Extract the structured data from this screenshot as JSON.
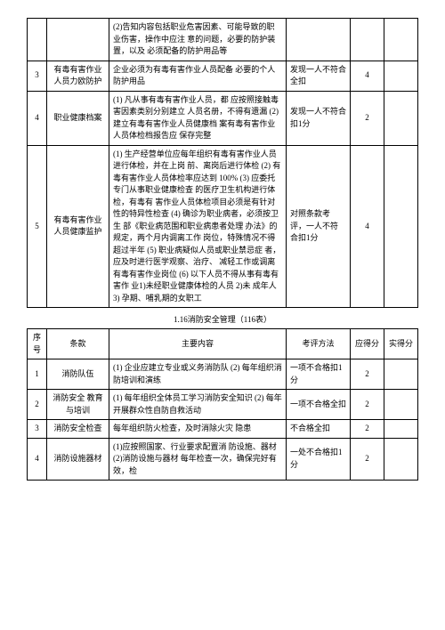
{
  "table1": {
    "rows": [
      {
        "idx": "",
        "item": "",
        "content": "(2)告知内容包括职业危害因素、可能导致的职业伤害，操作中应注 意的问题，必要的防护装置，以及 必须配备的防护用品等",
        "method": "",
        "score1": "",
        "score2": ""
      },
      {
        "idx": "3",
        "item": "有毒有害作业人员力欧防护",
        "content": "企业必须为有毒有害作业人员配备 必要的个人防护用品",
        "method": "发现一人不符合全扣",
        "score1": "4",
        "score2": ""
      },
      {
        "idx": "4",
        "item": "职业健康档案",
        "content": "(1) 凡从事有毒有害作业人员，都 应按照接触毒害因素类别分别建立 人员名册，不得有遗漏\n(2) 建立有毒有害作业人员健康档 案有毒有害作业人员体检档报告应 保存完整",
        "method": "发现一人不符合扣1分",
        "score1": "2",
        "score2": ""
      },
      {
        "idx": "5",
        "item": "有毒有害作业人员健康监护",
        "content": "(1) 生产经营单位应每年组织有毒有害作业人员进行体检，并在上岗 前、离岗后进行体检\n(2) 有毒有害作业人员体检率应达到 100%\n(3) 应委托专门从事职业健康检查 的医疗卫生机构进行体检，有毒有 害作业人员体检项目必须是有针对 性的特异性检查\n(4) 确诊为职业病者，必须按卫生 部《职业病范围和职业病患者处理 办法》的规定，两个月内调离工作 岗位，特殊情况不得超过半年\n(5) 职业病疑似人员或职业禁忌症 者，应及时进行医学观察、治疗、 减轻工作或调离有毒有害作业岗位\n(6) 以下人员不得从事有毒有害作 业1)未经职业健康体检的人员 2)未 成年人3) 孕期、哺乳期的女职工",
        "method": "对照条款考 评，一人不符 合扣1分",
        "score1": "4",
        "score2": ""
      }
    ]
  },
  "section_title": "1.16消防安全管理（116表）",
  "table2": {
    "headers": {
      "idx": "序号",
      "item": "条款",
      "content": "主要内容",
      "method": "考评方法",
      "score1": "应得分",
      "score2": "实得分"
    },
    "rows": [
      {
        "idx": "1",
        "item": "消防队伍",
        "content": "(1) 企业应建立专业或义务消防队\n(2) 每年组织消防培训和演练",
        "method": "一项不合格扣1分",
        "score1": "2",
        "score2": ""
      },
      {
        "idx": "2",
        "item": "消防安全\n教育与培训",
        "content": "(1) 每年组织全体员工学习消防安全知识\n(2) 每年开展群众性自防自救活动",
        "method": "一项不合格全扣",
        "score1": "2",
        "score2": ""
      },
      {
        "idx": "3",
        "item": "消防安全检查",
        "content": "每年组织防火检查，及时消除火灾 隐患",
        "method": "不合格全扣",
        "score1": "2",
        "score2": ""
      },
      {
        "idx": "4",
        "item": "消防设施器材",
        "content": "(1)应按照国家、行业要求配置消 防设施、器材(2)消防设施与器材 每年检查一次，确保完好有效，检",
        "method": "一处不合格扣1分",
        "score1": "2",
        "score2": ""
      }
    ]
  }
}
